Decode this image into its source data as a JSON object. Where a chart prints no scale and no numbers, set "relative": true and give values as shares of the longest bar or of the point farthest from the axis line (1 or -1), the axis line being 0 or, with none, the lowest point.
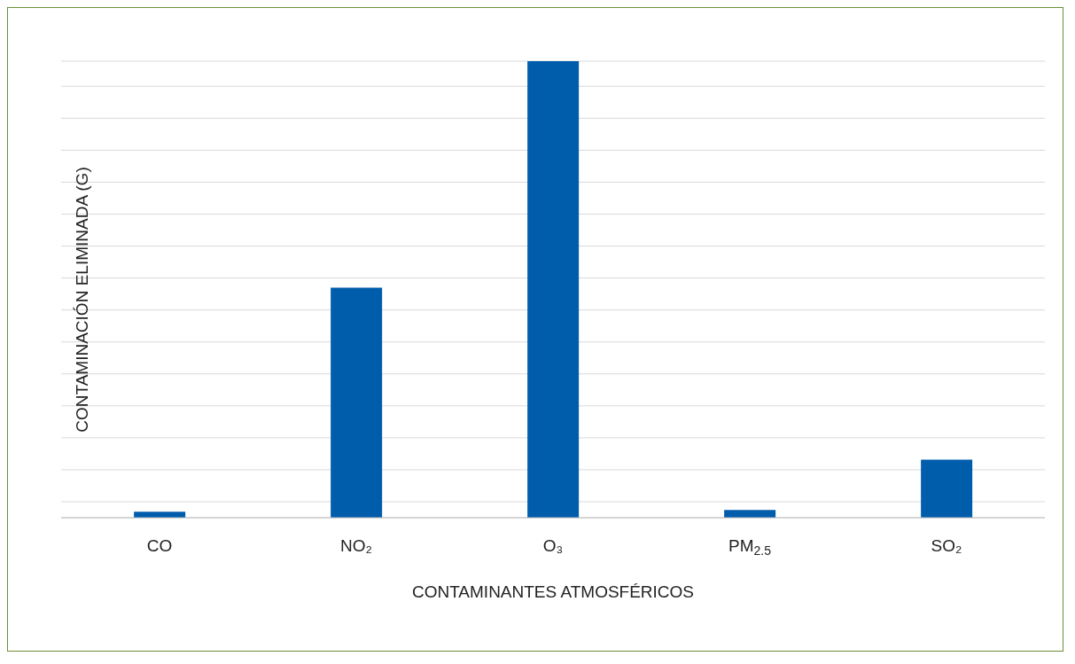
{
  "chart_data": {
    "type": "bar",
    "xlabel": "CONTAMINANTES ATMOSFÉRICOS",
    "ylabel": "CONTAMINACIÓN ELIMINADA (G)",
    "categories": [
      "CO",
      "NO₂",
      "O₃",
      "PM$_{2.5}$",
      "SO₂"
    ],
    "values": [
      0.013,
      0.504,
      1,
      0.017,
      0.127
    ],
    "color": "#005dab",
    "relative": true,
    "grid": "y"
  }
}
